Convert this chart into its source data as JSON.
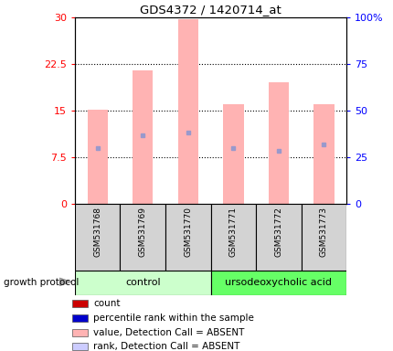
{
  "title": "GDS4372 / 1420714_at",
  "samples": [
    "GSM531768",
    "GSM531769",
    "GSM531770",
    "GSM531771",
    "GSM531772",
    "GSM531773"
  ],
  "bar_heights": [
    15.2,
    21.5,
    29.8,
    16.0,
    19.5,
    16.0
  ],
  "percentile_marks": [
    9.0,
    11.0,
    11.5,
    9.0,
    8.5,
    9.5
  ],
  "left_ylim": [
    0,
    30
  ],
  "right_ylim": [
    0,
    100
  ],
  "left_yticks": [
    0,
    7.5,
    15,
    22.5,
    30
  ],
  "right_yticks": [
    0,
    25,
    50,
    75,
    100
  ],
  "left_yticklabels": [
    "0",
    "7.5",
    "15",
    "22.5",
    "30"
  ],
  "right_yticklabels": [
    "0",
    "25",
    "50",
    "75",
    "100%"
  ],
  "bar_color": "#FFB3B3",
  "percentile_color": "#9999CC",
  "grid_lines": [
    7.5,
    15,
    22.5
  ],
  "control_label": "control",
  "treatment_label": "ursodeoxycholic acid",
  "control_color": "#CCFFCC",
  "treatment_color": "#66FF66",
  "group_label": "growth protocol",
  "legend_items": [
    {
      "label": "count",
      "color": "#CC0000"
    },
    {
      "label": "percentile rank within the sample",
      "color": "#0000CC"
    },
    {
      "label": "value, Detection Call = ABSENT",
      "color": "#FFB3B3"
    },
    {
      "label": "rank, Detection Call = ABSENT",
      "color": "#CCCCFF"
    }
  ]
}
